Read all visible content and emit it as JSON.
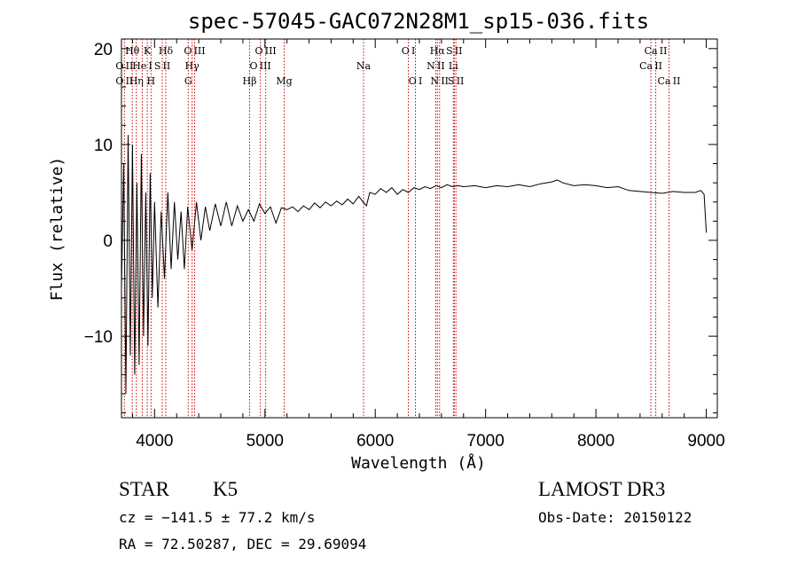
{
  "chart_data": {
    "type": "line",
    "title": "spec-57045-GAC072N28M1_sp15-036.fits",
    "xlabel": "Wavelength (Å)",
    "ylabel": "Flux (relative)",
    "xlim": [
      3700,
      9100
    ],
    "ylim": [
      -18.5,
      21
    ],
    "xticks": [
      4000,
      5000,
      6000,
      7000,
      8000,
      9000
    ],
    "yticks": [
      -10,
      0,
      10,
      20
    ],
    "xtick_labels": [
      "4000",
      "5000",
      "6000",
      "7000",
      "8000",
      "9000"
    ],
    "ytick_labels": [
      "−10",
      "0",
      "10",
      "20"
    ],
    "series": [
      {
        "name": "spectrum",
        "x": [
          3700,
          3720,
          3740,
          3760,
          3780,
          3800,
          3820,
          3840,
          3860,
          3880,
          3900,
          3920,
          3940,
          3960,
          3980,
          4000,
          4030,
          4060,
          4090,
          4120,
          4150,
          4180,
          4210,
          4240,
          4270,
          4300,
          4340,
          4380,
          4420,
          4460,
          4500,
          4550,
          4600,
          4650,
          4700,
          4750,
          4800,
          4850,
          4900,
          4950,
          5000,
          5050,
          5100,
          5150,
          5200,
          5250,
          5300,
          5350,
          5400,
          5450,
          5500,
          5550,
          5600,
          5650,
          5700,
          5750,
          5800,
          5850,
          5890,
          5920,
          5950,
          6000,
          6050,
          6100,
          6150,
          6200,
          6250,
          6300,
          6350,
          6400,
          6450,
          6500,
          6550,
          6600,
          6650,
          6700,
          6750,
          6800,
          6900,
          7000,
          7100,
          7200,
          7300,
          7400,
          7500,
          7600,
          7650,
          7700,
          7800,
          7900,
          8000,
          8100,
          8200,
          8300,
          8400,
          8500,
          8600,
          8700,
          8800,
          8900,
          8950,
          8980,
          9000
        ],
        "values": [
          -5,
          8,
          -16,
          11,
          -12,
          10,
          -14,
          6,
          -13,
          9,
          -10,
          5,
          -11,
          7,
          -6,
          4,
          -7,
          3,
          -4,
          5,
          -3,
          4,
          -2,
          3,
          -3,
          3.5,
          -1,
          4,
          0,
          3.5,
          1,
          3.8,
          1.5,
          4,
          1.5,
          3.6,
          2,
          3.2,
          2,
          3.8,
          2.8,
          3.5,
          1.8,
          3.4,
          3.2,
          3.5,
          3.0,
          3.6,
          3.2,
          3.9,
          3.4,
          4.0,
          3.6,
          4.1,
          3.7,
          4.3,
          3.8,
          4.6,
          4.0,
          3.6,
          5.0,
          4.8,
          5.4,
          5.0,
          5.5,
          4.8,
          5.3,
          5.0,
          5.5,
          5.3,
          5.6,
          5.4,
          5.7,
          5.5,
          5.8,
          5.6,
          5.7,
          5.6,
          5.7,
          5.5,
          5.7,
          5.6,
          5.8,
          5.6,
          5.9,
          6.1,
          6.3,
          6.0,
          5.7,
          5.8,
          5.7,
          5.5,
          5.6,
          5.2,
          5.1,
          5.0,
          4.9,
          5.1,
          5.0,
          5.0,
          5.2,
          4.8,
          0.8
        ]
      }
    ],
    "annotations": [
      {
        "label": "O II",
        "x": 3727,
        "row": 2
      },
      {
        "label": "Hθ",
        "x": 3798,
        "row": 1
      },
      {
        "label": "O II",
        "x": 3727,
        "row": 3
      },
      {
        "label": "Hη",
        "x": 3835,
        "row": 3
      },
      {
        "label": "He I",
        "x": 3889,
        "row": 2
      },
      {
        "label": "K",
        "x": 3934,
        "row": 1
      },
      {
        "label": "H",
        "x": 3968,
        "row": 3
      },
      {
        "label": "S II",
        "x": 4070,
        "row": 2
      },
      {
        "label": "Hδ",
        "x": 4102,
        "row": 1
      },
      {
        "label": "O III",
        "x": 4363,
        "row": 1
      },
      {
        "label": "Hγ",
        "x": 4340,
        "row": 2
      },
      {
        "label": "G",
        "x": 4305,
        "row": 3
      },
      {
        "label": "Hβ",
        "x": 4861,
        "row": 3
      },
      {
        "label": "O III",
        "x": 4959,
        "row": 2
      },
      {
        "label": "O III",
        "x": 5007,
        "row": 1
      },
      {
        "label": "Mg",
        "x": 5175,
        "row": 3
      },
      {
        "label": "Na",
        "x": 5894,
        "row": 2
      },
      {
        "label": "O I",
        "x": 6300,
        "row": 1
      },
      {
        "label": "O I",
        "x": 6364,
        "row": 3
      },
      {
        "label": "N II",
        "x": 6548,
        "row": 2
      },
      {
        "label": "Hα",
        "x": 6563,
        "row": 1
      },
      {
        "label": "N II",
        "x": 6583,
        "row": 3
      },
      {
        "label": "Li",
        "x": 6708,
        "row": 2
      },
      {
        "label": "S II",
        "x": 6716,
        "row": 1
      },
      {
        "label": "S II",
        "x": 6731,
        "row": 3
      },
      {
        "label": "Ca II",
        "x": 8498,
        "row": 2
      },
      {
        "label": "Ca II",
        "x": 8542,
        "row": 1
      },
      {
        "label": "Ca II",
        "x": 8662,
        "row": 3
      }
    ]
  },
  "info": {
    "object_class": "STAR",
    "subclass": "K5",
    "survey": "LAMOST DR3",
    "cz": "cz = −141.5 ± 77.2 km/s",
    "obs_date": "Obs-Date: 20150122",
    "coords": "RA =  72.50287, DEC =  29.69094"
  }
}
